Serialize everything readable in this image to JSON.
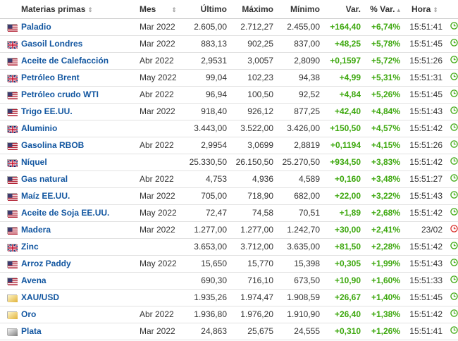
{
  "colors": {
    "link": "#1256a0",
    "positive": "#3ea80f",
    "clock_open": "#3ea80f",
    "clock_closed": "#d9302c"
  },
  "headers": {
    "name": "Materias primas",
    "month": "Mes",
    "last": "Último",
    "high": "Máximo",
    "low": "Mínimo",
    "change": "Var.",
    "change_pct": "% Var.",
    "time": "Hora"
  },
  "rows": [
    {
      "flag": "us-flag-icon",
      "name": "Paladio",
      "month": "Mar 2022",
      "last": "2.605,00",
      "high": "2.712,27",
      "low": "2.455,00",
      "change": "+164,40",
      "change_pct": "+6,74%",
      "time": "15:51:41",
      "clock": "clock-green-icon"
    },
    {
      "flag": "uk-flag-icon",
      "name": "Gasoil Londres",
      "month": "Mar 2022",
      "last": "883,13",
      "high": "902,25",
      "low": "837,00",
      "change": "+48,25",
      "change_pct": "+5,78%",
      "time": "15:51:45",
      "clock": "clock-green-icon"
    },
    {
      "flag": "us-flag-icon",
      "name": "Aceite de Calefacción",
      "month": "Abr 2022",
      "last": "2,9531",
      "high": "3,0057",
      "low": "2,8090",
      "change": "+0,1597",
      "change_pct": "+5,72%",
      "time": "15:51:26",
      "clock": "clock-green-icon"
    },
    {
      "flag": "uk-flag-icon",
      "name": "Petróleo Brent",
      "month": "May 2022",
      "last": "99,04",
      "high": "102,23",
      "low": "94,38",
      "change": "+4,99",
      "change_pct": "+5,31%",
      "time": "15:51:31",
      "clock": "clock-green-icon"
    },
    {
      "flag": "us-flag-icon",
      "name": "Petróleo crudo WTI",
      "month": "Abr 2022",
      "last": "96,94",
      "high": "100,50",
      "low": "92,52",
      "change": "+4,84",
      "change_pct": "+5,26%",
      "time": "15:51:45",
      "clock": "clock-green-icon"
    },
    {
      "flag": "us-flag-icon",
      "name": "Trigo EE.UU.",
      "month": "Mar 2022",
      "last": "918,40",
      "high": "926,12",
      "low": "877,25",
      "change": "+42,40",
      "change_pct": "+4,84%",
      "time": "15:51:43",
      "clock": "clock-green-icon"
    },
    {
      "flag": "uk-flag-icon",
      "name": "Aluminio",
      "month": "",
      "last": "3.443,00",
      "high": "3.522,00",
      "low": "3.426,00",
      "change": "+150,50",
      "change_pct": "+4,57%",
      "time": "15:51:42",
      "clock": "clock-green-icon"
    },
    {
      "flag": "us-flag-icon",
      "name": "Gasolina RBOB",
      "month": "Abr 2022",
      "last": "2,9954",
      "high": "3,0699",
      "low": "2,8819",
      "change": "+0,1194",
      "change_pct": "+4,15%",
      "time": "15:51:26",
      "clock": "clock-green-icon"
    },
    {
      "flag": "uk-flag-icon",
      "name": "Níquel",
      "month": "",
      "last": "25.330,50",
      "high": "26.150,50",
      "low": "25.270,50",
      "change": "+934,50",
      "change_pct": "+3,83%",
      "time": "15:51:42",
      "clock": "clock-green-icon"
    },
    {
      "flag": "us-flag-icon",
      "name": "Gas natural",
      "month": "Abr 2022",
      "last": "4,753",
      "high": "4,936",
      "low": "4,589",
      "change": "+0,160",
      "change_pct": "+3,48%",
      "time": "15:51:27",
      "clock": "clock-green-icon"
    },
    {
      "flag": "us-flag-icon",
      "name": "Maíz EE.UU.",
      "month": "Mar 2022",
      "last": "705,00",
      "high": "718,90",
      "low": "682,00",
      "change": "+22,00",
      "change_pct": "+3,22%",
      "time": "15:51:43",
      "clock": "clock-green-icon"
    },
    {
      "flag": "us-flag-icon",
      "name": "Aceite de Soja EE.UU.",
      "month": "May 2022",
      "last": "72,47",
      "high": "74,58",
      "low": "70,51",
      "change": "+1,89",
      "change_pct": "+2,68%",
      "time": "15:51:42",
      "clock": "clock-green-icon"
    },
    {
      "flag": "us-flag-icon",
      "name": "Madera",
      "month": "Mar 2022",
      "last": "1.277,00",
      "high": "1.277,00",
      "low": "1.242,70",
      "change": "+30,00",
      "change_pct": "+2,41%",
      "time": "23/02",
      "clock": "clock-red-icon"
    },
    {
      "flag": "uk-flag-icon",
      "name": "Zinc",
      "month": "",
      "last": "3.653,00",
      "high": "3.712,00",
      "low": "3.635,00",
      "change": "+81,50",
      "change_pct": "+2,28%",
      "time": "15:51:42",
      "clock": "clock-green-icon"
    },
    {
      "flag": "us-flag-icon",
      "name": "Arroz Paddy",
      "month": "May 2022",
      "last": "15,650",
      "high": "15,770",
      "low": "15,398",
      "change": "+0,305",
      "change_pct": "+1,99%",
      "time": "15:51:43",
      "clock": "clock-green-icon"
    },
    {
      "flag": "us-flag-icon",
      "name": "Avena",
      "month": "",
      "last": "690,30",
      "high": "716,10",
      "low": "673,50",
      "change": "+10,90",
      "change_pct": "+1,60%",
      "time": "15:51:33",
      "clock": "clock-green-icon"
    },
    {
      "flag": "gold-flag-icon",
      "name": "XAU/USD",
      "month": "",
      "last": "1.935,26",
      "high": "1.974,47",
      "low": "1.908,59",
      "change": "+26,67",
      "change_pct": "+1,40%",
      "time": "15:51:45",
      "clock": "clock-green-icon"
    },
    {
      "flag": "gold-flag-icon",
      "name": "Oro",
      "month": "Abr 2022",
      "last": "1.936,80",
      "high": "1.976,20",
      "low": "1.910,90",
      "change": "+26,40",
      "change_pct": "+1,38%",
      "time": "15:51:42",
      "clock": "clock-green-icon"
    },
    {
      "flag": "silver-flag-icon",
      "name": "Plata",
      "month": "Mar 2022",
      "last": "24,863",
      "high": "25,675",
      "low": "24,555",
      "change": "+0,310",
      "change_pct": "+1,26%",
      "time": "15:51:41",
      "clock": "clock-green-icon"
    }
  ]
}
